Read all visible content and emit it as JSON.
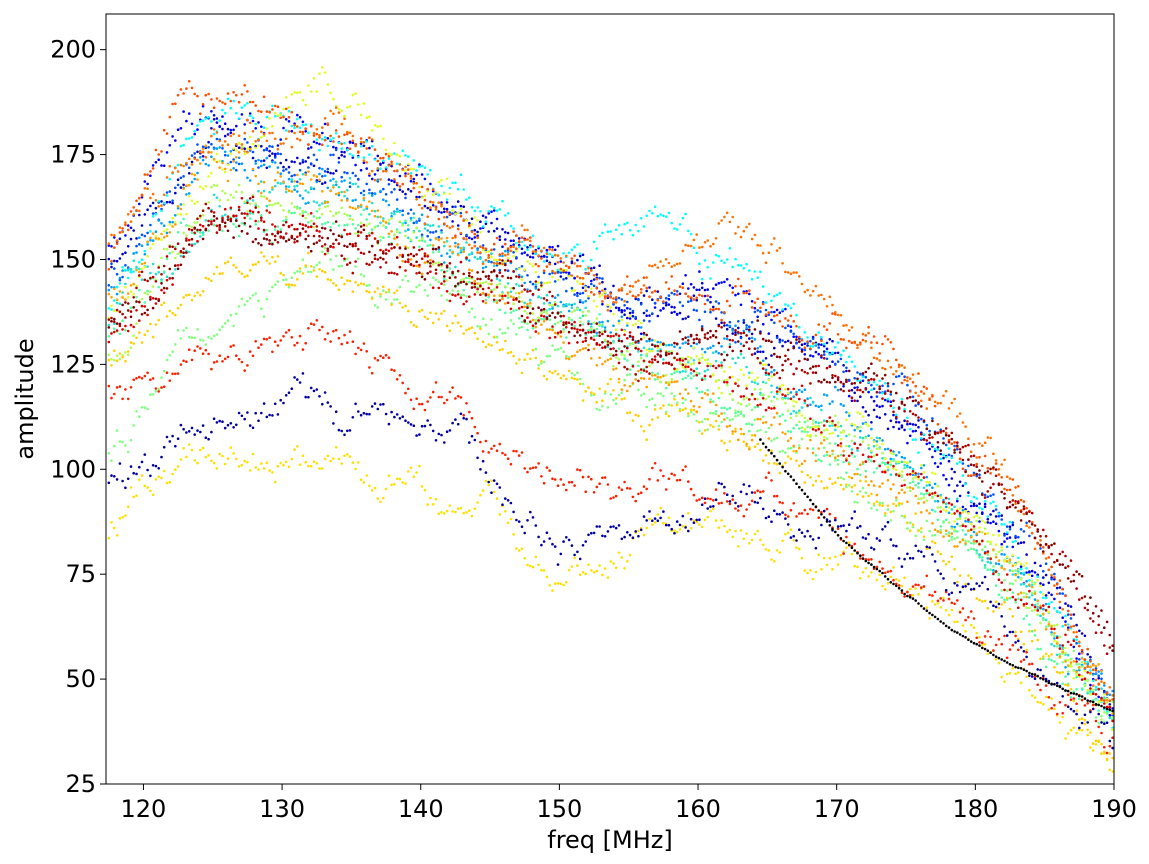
{
  "chart_data": {
    "type": "scatter",
    "title": "",
    "xlabel": "freq [MHz]",
    "ylabel": "amplitude",
    "xlim": [
      117.3,
      190
    ],
    "ylim": [
      25,
      208.5
    ],
    "xticks": [
      120,
      130,
      140,
      150,
      160,
      170,
      180,
      190
    ],
    "yticks": [
      25,
      50,
      75,
      100,
      125,
      150,
      175,
      200
    ],
    "xtick_labels": [
      "120",
      "130",
      "140",
      "150",
      "160",
      "170",
      "180",
      "190"
    ],
    "ytick_labels": [
      "25",
      "50",
      "75",
      "100",
      "125",
      "150",
      "175",
      "200"
    ],
    "grid": false,
    "legend": "none",
    "point_step_mhz": 0.2,
    "series": [
      {
        "color": "#0000c8",
        "x": [
          117.5,
          125,
          135,
          145,
          150,
          160,
          170,
          180,
          185,
          190
        ],
        "y": [
          150,
          180,
          175,
          158,
          150,
          140,
          125,
          95,
          75,
          42
        ]
      },
      {
        "color": "#0000ff",
        "x": [
          117.5,
          123,
          133,
          143,
          153,
          162,
          172,
          182,
          190
        ],
        "y": [
          152,
          185,
          178,
          160,
          140,
          145,
          120,
          85,
          40
        ]
      },
      {
        "color": "#0050ff",
        "x": [
          117.5,
          125,
          135,
          145,
          155,
          165,
          175,
          183,
          190
        ],
        "y": [
          145,
          178,
          170,
          155,
          138,
          135,
          118,
          88,
          44
        ]
      },
      {
        "color": "#00a0ff",
        "x": [
          117.5,
          125,
          135,
          145,
          155,
          162,
          172,
          182,
          190
        ],
        "y": [
          140,
          175,
          168,
          150,
          132,
          128,
          112,
          80,
          40
        ]
      },
      {
        "color": "#00ffff",
        "x": [
          117.5,
          123,
          133,
          143,
          150,
          157,
          165,
          175,
          183,
          190
        ],
        "y": [
          138,
          180,
          185,
          165,
          150,
          163,
          140,
          112,
          82,
          42
        ]
      },
      {
        "color": "#20e0d0",
        "x": [
          117.5,
          125,
          135,
          145,
          155,
          165,
          175,
          183,
          190
        ],
        "y": [
          135,
          168,
          165,
          148,
          130,
          122,
          100,
          75,
          40
        ]
      },
      {
        "color": "#50ffa0",
        "x": [
          117.5,
          125,
          135,
          145,
          155,
          165,
          175,
          183,
          190
        ],
        "y": [
          132,
          160,
          158,
          142,
          128,
          115,
          95,
          72,
          38
        ]
      },
      {
        "color": "#80ff80",
        "x": [
          117.5,
          123,
          133,
          143,
          153,
          163,
          173,
          183,
          190
        ],
        "y": [
          105,
          130,
          150,
          138,
          120,
          110,
          98,
          70,
          40
        ]
      },
      {
        "color": "#b0ff50",
        "x": [
          117.5,
          125,
          135,
          145,
          155,
          165,
          175,
          183,
          190
        ],
        "y": [
          128,
          165,
          160,
          145,
          128,
          118,
          100,
          72,
          38
        ]
      },
      {
        "color": "#e0ff20",
        "x": [
          117.5,
          125,
          133,
          143,
          153,
          163,
          173,
          183,
          190
        ],
        "y": [
          135,
          172,
          195,
          160,
          135,
          125,
          105,
          78,
          40
        ]
      },
      {
        "color": "#ffe000",
        "x": [
          117.5,
          123,
          133,
          143,
          150,
          160,
          170,
          180,
          190
        ],
        "y": [
          82,
          105,
          102,
          92,
          77,
          85,
          78,
          60,
          27
        ]
      },
      {
        "color": "#ffd000",
        "x": [
          117.5,
          125,
          135,
          145,
          155,
          165,
          175,
          183,
          190
        ],
        "y": [
          125,
          148,
          145,
          130,
          115,
          105,
          88,
          65,
          35
        ]
      },
      {
        "color": "#ffa000",
        "x": [
          117.5,
          125,
          135,
          145,
          155,
          165,
          175,
          183,
          190
        ],
        "y": [
          140,
          175,
          165,
          145,
          120,
          112,
          95,
          75,
          42
        ]
      },
      {
        "color": "#ff7000",
        "x": [
          117.5,
          125,
          135,
          145,
          155,
          162,
          172,
          182,
          190
        ],
        "y": [
          155,
          182,
          178,
          155,
          140,
          158,
          132,
          98,
          45
        ]
      },
      {
        "color": "#ff5000",
        "x": [
          117.5,
          123,
          133,
          143,
          153,
          163,
          173,
          183,
          190
        ],
        "y": [
          148,
          190,
          182,
          158,
          142,
          145,
          128,
          95,
          45
        ]
      },
      {
        "color": "#ff2000",
        "x": [
          117.5,
          123,
          133,
          143,
          148,
          158,
          168,
          178,
          190
        ],
        "y": [
          118,
          125,
          130,
          115,
          100,
          96,
          90,
          70,
          35
        ]
      },
      {
        "color": "#e00000",
        "x": [
          117.5,
          125,
          135,
          145,
          155,
          165,
          175,
          183,
          190
        ],
        "y": [
          130,
          160,
          155,
          140,
          125,
          118,
          100,
          75,
          40
        ]
      },
      {
        "color": "#b00000",
        "x": [
          117.5,
          125,
          135,
          145,
          155,
          163,
          173,
          183,
          190
        ],
        "y": [
          138,
          160,
          155,
          148,
          128,
          132,
          118,
          88,
          58
        ]
      },
      {
        "color": "#800000",
        "x": [
          117.5,
          125,
          135,
          145,
          155,
          163,
          173,
          183,
          190
        ],
        "y": [
          135,
          158,
          155,
          145,
          130,
          133,
          120,
          90,
          58
        ]
      },
      {
        "color": "#0000a0",
        "x": [
          117.5,
          125,
          133,
          143,
          150,
          160,
          170,
          180,
          190
        ],
        "y": [
          98,
          108,
          115,
          108,
          80,
          92,
          88,
          70,
          35
        ]
      },
      {
        "color": "#000000",
        "x": [
          164.5,
          170,
          175,
          180,
          185,
          190
        ],
        "y": [
          107,
          85,
          70,
          58,
          50,
          42
        ]
      }
    ]
  }
}
